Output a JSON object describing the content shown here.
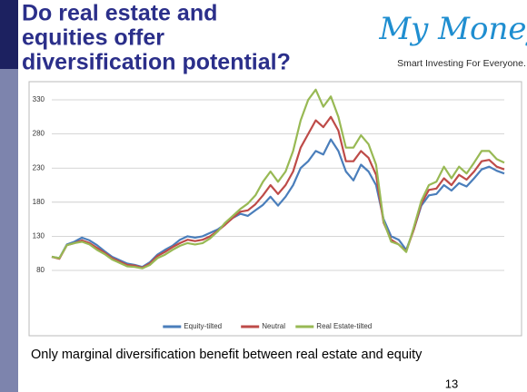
{
  "slide": {
    "title": [
      "Do real estate and",
      "equities offer",
      "diversification potential?"
    ],
    "logo": "My Money",
    "tagline": "Smart Investing For Everyone.",
    "caption": "Only marginal diversification benefit between real estate and equity",
    "page_number": "13"
  },
  "chart_data": {
    "type": "line",
    "categories": [
      null,
      null,
      null,
      null,
      null,
      null,
      null,
      null,
      null,
      null,
      null,
      null,
      null,
      null,
      null,
      null,
      null,
      null,
      null,
      null,
      null,
      null,
      null,
      null,
      null,
      null,
      null,
      null,
      null,
      null,
      null,
      null,
      null,
      null,
      null,
      null,
      null,
      null,
      null,
      null,
      null,
      null,
      null,
      null,
      null,
      null,
      null,
      null,
      null,
      null,
      null,
      null,
      null,
      null,
      null,
      null,
      null,
      null,
      null,
      null,
      null
    ],
    "ylim": [
      80,
      350
    ],
    "yticks": [
      80,
      130,
      180,
      230,
      280,
      330
    ],
    "grid": true,
    "legend": "bottom",
    "series": [
      {
        "name": "Equity-tilted",
        "color": "#4a7ebb",
        "values": [
          100,
          98,
          118,
          122,
          128,
          124,
          117,
          108,
          100,
          95,
          90,
          88,
          85,
          92,
          103,
          110,
          116,
          125,
          130,
          128,
          130,
          135,
          140,
          148,
          157,
          163,
          160,
          168,
          176,
          188,
          175,
          188,
          205,
          230,
          240,
          255,
          250,
          272,
          255,
          225,
          212,
          235,
          225,
          205,
          155,
          130,
          125,
          110,
          140,
          175,
          190,
          192,
          205,
          197,
          208,
          203,
          215,
          228,
          232,
          226,
          222
        ]
      },
      {
        "name": "Neutral",
        "color": "#be4b48",
        "values": [
          100,
          97,
          117,
          120,
          124,
          120,
          113,
          106,
          98,
          93,
          88,
          87,
          84,
          90,
          101,
          107,
          114,
          120,
          125,
          123,
          125,
          130,
          138,
          147,
          157,
          166,
          168,
          177,
          190,
          205,
          192,
          205,
          225,
          260,
          280,
          300,
          290,
          305,
          285,
          240,
          240,
          255,
          245,
          220,
          150,
          125,
          118,
          108,
          140,
          178,
          198,
          200,
          215,
          205,
          220,
          213,
          225,
          240,
          242,
          232,
          228
        ]
      },
      {
        "name": "Real Estate-tilted",
        "color": "#98b954",
        "values": [
          100,
          98,
          117,
          120,
          122,
          118,
          110,
          104,
          96,
          91,
          86,
          85,
          83,
          88,
          98,
          103,
          110,
          116,
          120,
          118,
          120,
          127,
          137,
          150,
          160,
          170,
          178,
          190,
          210,
          225,
          210,
          225,
          255,
          300,
          330,
          345,
          320,
          335,
          305,
          260,
          260,
          278,
          265,
          235,
          152,
          122,
          118,
          107,
          143,
          182,
          205,
          210,
          232,
          215,
          232,
          222,
          238,
          255,
          255,
          243,
          238
        ]
      }
    ]
  }
}
